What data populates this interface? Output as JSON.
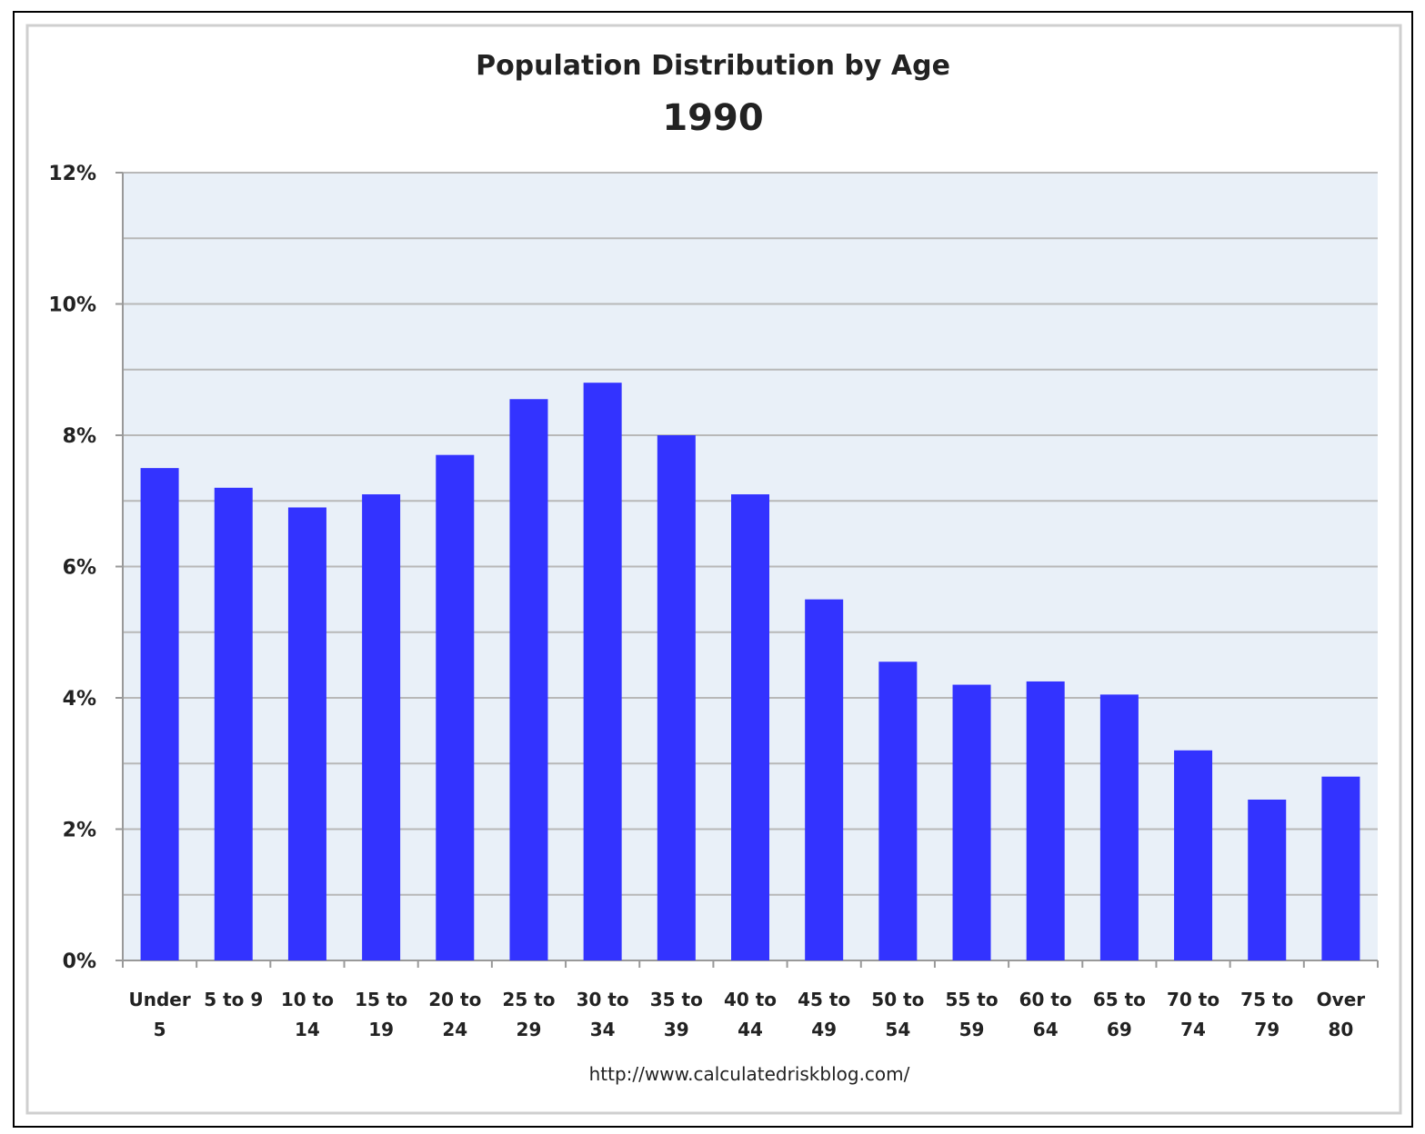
{
  "chart_data": {
    "type": "bar",
    "title": "Population Distribution by Age",
    "subtitle": "1990",
    "xlabel": "",
    "ylabel": "",
    "ylim": [
      0,
      12
    ],
    "yticks": [
      "0%",
      "2%",
      "4%",
      "6%",
      "8%",
      "10%",
      "12%"
    ],
    "grid": true,
    "categories": [
      [
        "Under",
        "5"
      ],
      [
        "5 to 9",
        ""
      ],
      [
        "10 to",
        "14"
      ],
      [
        "15 to",
        "19"
      ],
      [
        "20 to",
        "24"
      ],
      [
        "25 to",
        "29"
      ],
      [
        "30 to",
        "34"
      ],
      [
        "35 to",
        "39"
      ],
      [
        "40 to",
        "44"
      ],
      [
        "45 to",
        "49"
      ],
      [
        "50 to",
        "54"
      ],
      [
        "55 to",
        "59"
      ],
      [
        "60 to",
        "64"
      ],
      [
        "65 to",
        "69"
      ],
      [
        "70 to",
        "74"
      ],
      [
        "75 to",
        "79"
      ],
      [
        "Over",
        "80"
      ]
    ],
    "values": [
      7.5,
      7.2,
      6.9,
      7.1,
      7.7,
      8.55,
      8.8,
      8.0,
      7.1,
      5.5,
      4.55,
      4.2,
      4.25,
      4.05,
      3.2,
      2.45,
      2.8
    ],
    "bar_color": "#3333ff",
    "source": "http://www.calculatedriskblog.com/"
  }
}
